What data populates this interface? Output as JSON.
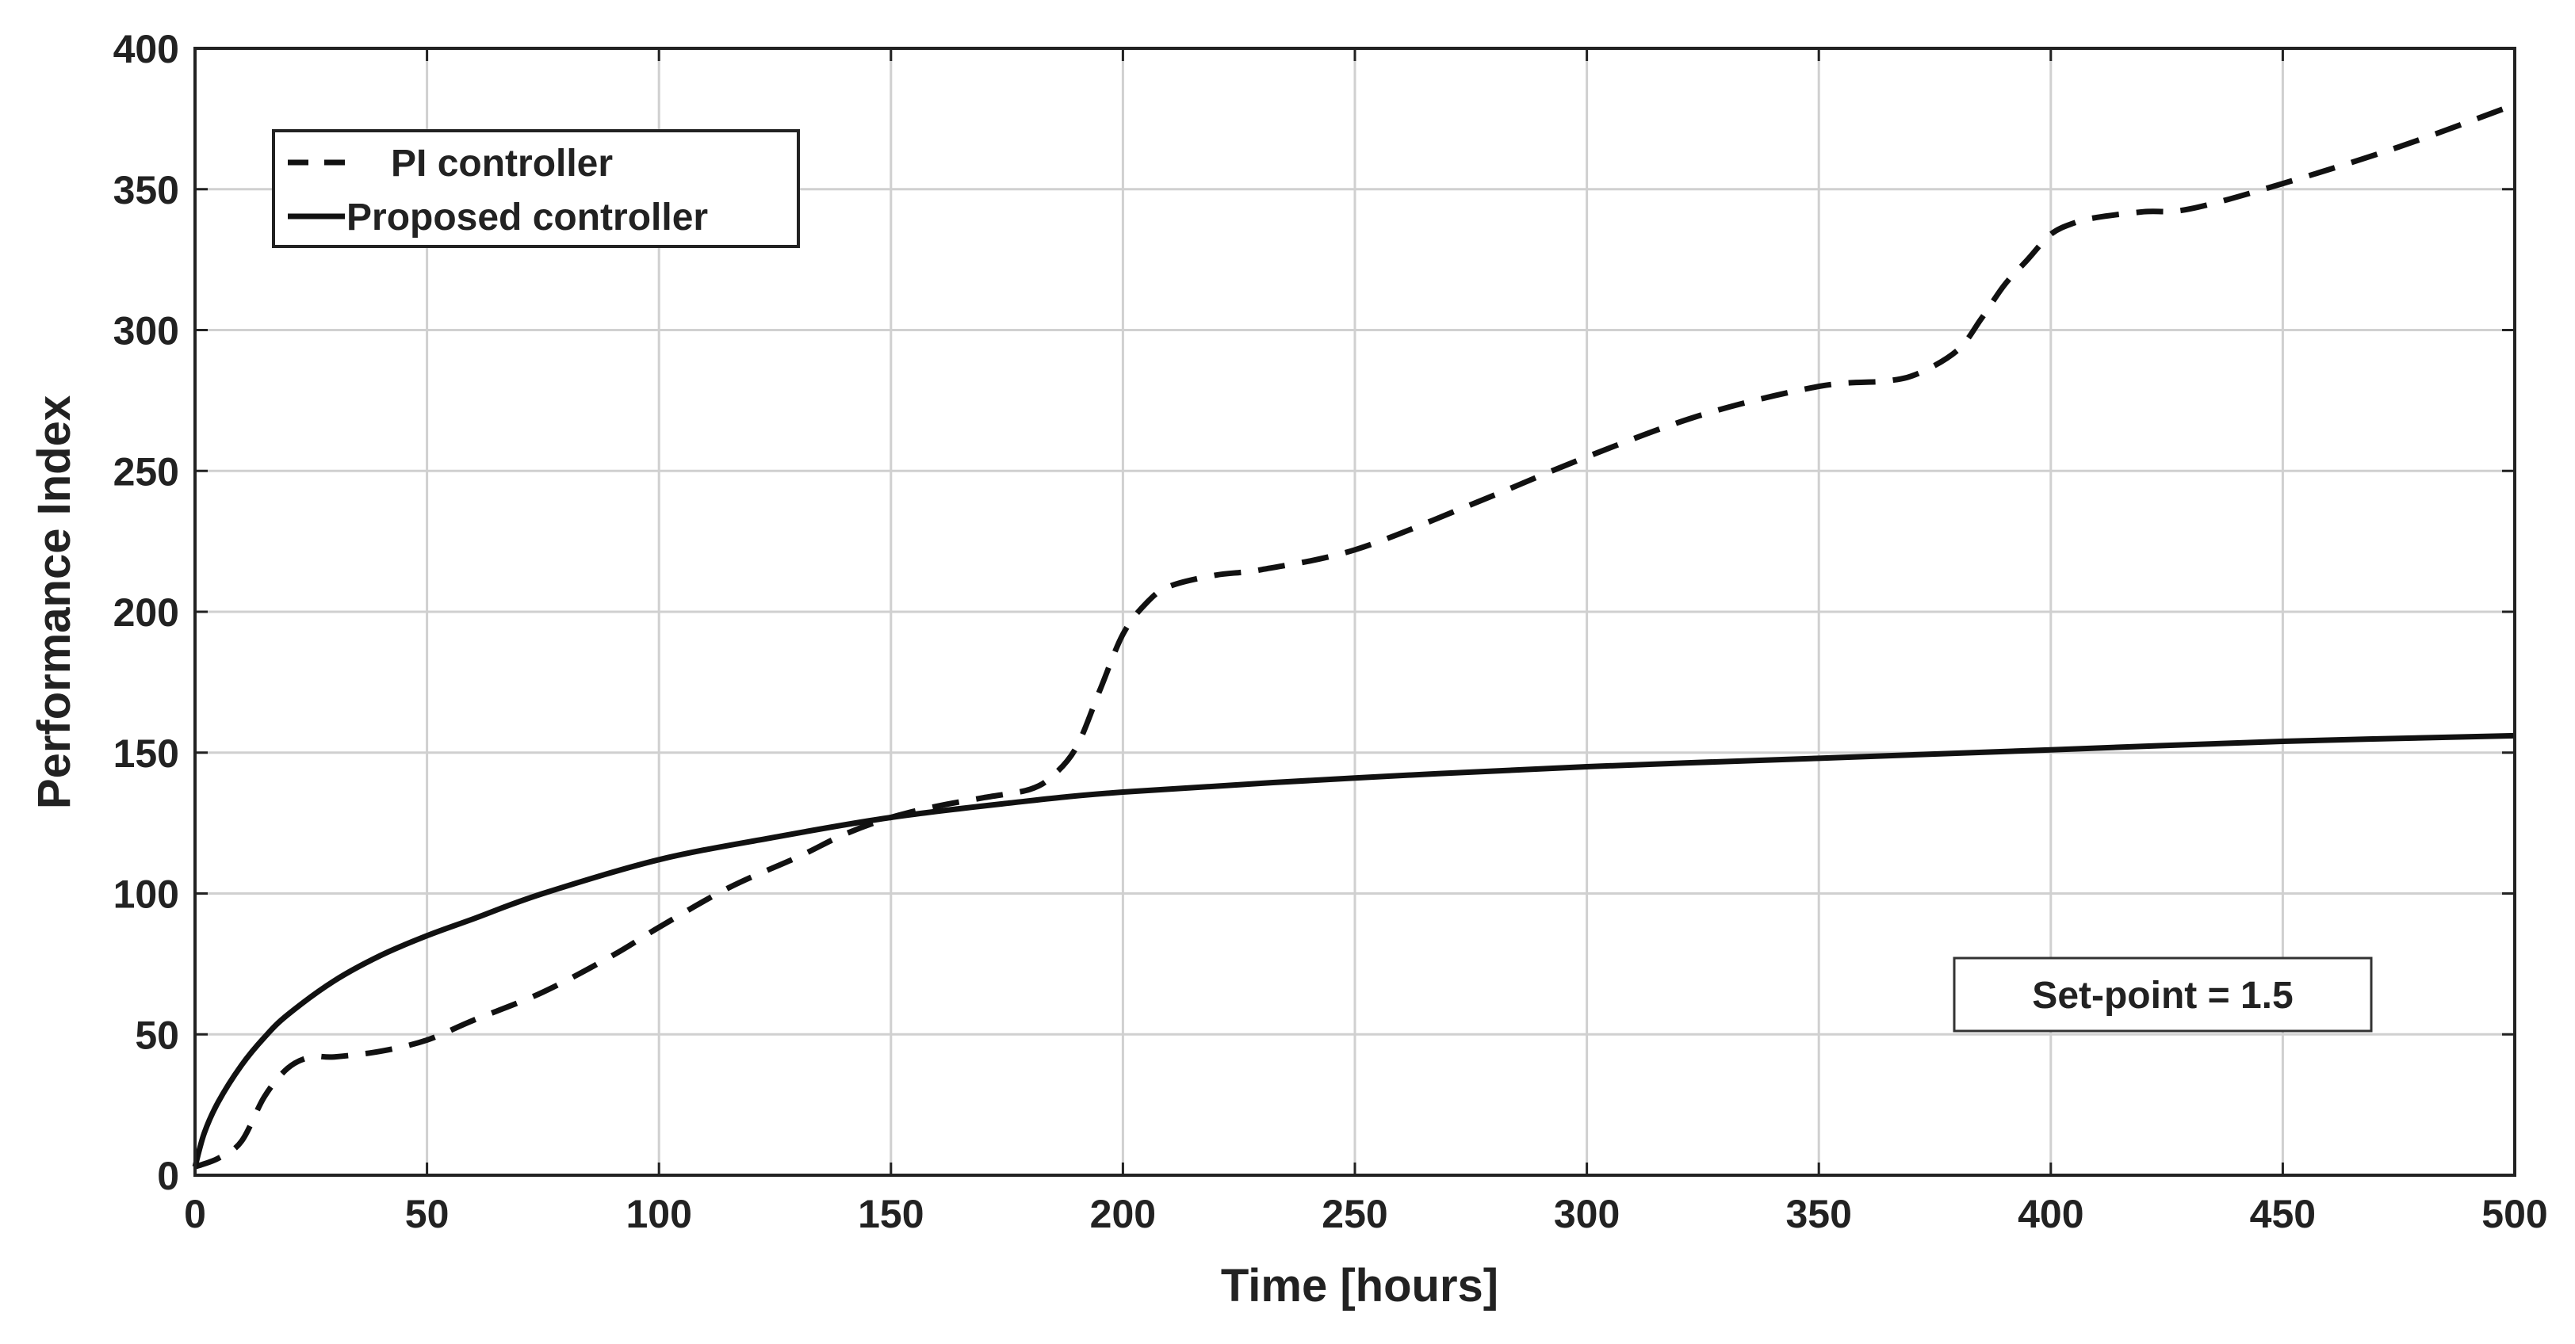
{
  "chart_data": {
    "type": "line",
    "xlabel": "Time [hours]",
    "ylabel": "Performance Index",
    "xlim": [
      0,
      500
    ],
    "ylim": [
      0,
      400
    ],
    "xticks": [
      0,
      50,
      100,
      150,
      200,
      250,
      300,
      350,
      400,
      450,
      500
    ],
    "yticks": [
      0,
      50,
      100,
      150,
      200,
      250,
      300,
      350,
      400
    ],
    "grid": true,
    "legend_position": "top-left",
    "annotation": "Set-point = 1.5",
    "series": [
      {
        "name": "PI controller",
        "style": "dashed",
        "color": "#111111",
        "x": [
          0,
          5,
          10,
          15,
          20,
          25,
          30,
          40,
          50,
          60,
          75,
          90,
          100,
          115,
          130,
          140,
          150,
          160,
          170,
          180,
          185,
          190,
          195,
          200,
          205,
          210,
          220,
          230,
          250,
          275,
          300,
          325,
          350,
          365,
          372,
          380,
          385,
          390,
          395,
          400,
          405,
          410,
          420,
          430,
          450,
          475,
          500
        ],
        "y": [
          3,
          6,
          12,
          28,
          38,
          42,
          42,
          44,
          48,
          55,
          65,
          78,
          88,
          102,
          113,
          121,
          127,
          131,
          134,
          137,
          142,
          152,
          172,
          192,
          203,
          209,
          213,
          215,
          222,
          238,
          255,
          270,
          280,
          282,
          285,
          293,
          304,
          316,
          325,
          334,
          338,
          340,
          342,
          343,
          352,
          365,
          380
        ]
      },
      {
        "name": "Proposed controller",
        "style": "solid",
        "color": "#111111",
        "x": [
          0,
          2,
          5,
          10,
          15,
          20,
          30,
          40,
          50,
          60,
          75,
          100,
          125,
          150,
          175,
          200,
          250,
          300,
          350,
          400,
          450,
          500
        ],
        "y": [
          3,
          15,
          26,
          39,
          49,
          57,
          69,
          78,
          85,
          91,
          100,
          112,
          120,
          127,
          132,
          136,
          141,
          145,
          148,
          151,
          154,
          156
        ]
      }
    ]
  }
}
